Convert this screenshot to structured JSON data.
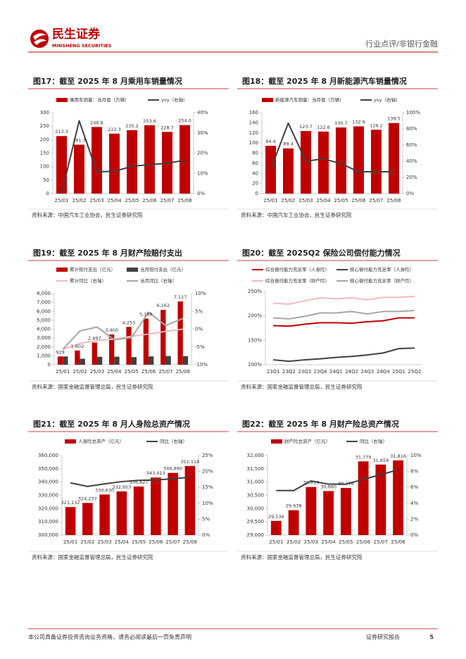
{
  "header": {
    "logo_name": "民生证券",
    "logo_en": "MINSHENG SECURITIES",
    "section": "行业点评/非银行金融"
  },
  "footer": {
    "disclaimer": "本公司具备证券投资咨询业务资格，请务必阅读最后一页免责声明",
    "report": "证券研究报告",
    "page": "5"
  },
  "chart_data": [
    {
      "type": "bar",
      "title": "图17：截至 2025 年 8 月乘用车销量情况",
      "source": "资料来源：中国汽车工业协会，民生证券研究院",
      "categories": [
        "25/01",
        "25/02",
        "25/03",
        "25/04",
        "25/05",
        "25/06",
        "25/07",
        "25/08"
      ],
      "ylim": [
        0,
        300
      ],
      "yticks": [
        0,
        50,
        100,
        150,
        200,
        250,
        300
      ],
      "y2lim": [
        0,
        40
      ],
      "y2ticks": [
        {
          "value": 0,
          "label": "0%"
        },
        {
          "value": 10,
          "label": "10%"
        },
        {
          "value": 20,
          "label": "20%"
        },
        {
          "value": 30,
          "label": "30%"
        },
        {
          "value": 40,
          "label": "40%"
        }
      ],
      "series": [
        {
          "name": "乘用车销量：当月值（万辆）",
          "type": "bar",
          "color": "#c00000",
          "values": [
            213.3,
            181.3,
            246.8,
            222.3,
            235.2,
            253.6,
            228.7,
            254.0
          ],
          "value_labels": [
            "213.3",
            "181.3",
            "246.8",
            "222.3",
            "235.2",
            "253.6",
            "228.7",
            "254.0"
          ]
        },
        {
          "name": "yoy（右轴）",
          "type": "line",
          "axis": "y2",
          "color": "#404040",
          "values": [
            0,
            36,
            10.8,
            11,
            13.5,
            14.3,
            15,
            16.5
          ]
        }
      ]
    },
    {
      "type": "bar",
      "title": "图18：截至 2025 年 8 月新能源汽车销量情况",
      "source": "资料来源：中国汽车工业协会，民生证券研究院",
      "categories": [
        "25/01",
        "25/02",
        "25/03",
        "25/04",
        "25/05",
        "25/06",
        "25/07",
        "25/08"
      ],
      "ylim": [
        0,
        160
      ],
      "yticks": [
        0,
        20,
        40,
        60,
        80,
        100,
        120,
        140,
        160
      ],
      "y2lim": [
        0,
        100
      ],
      "y2ticks": [
        {
          "value": 0,
          "label": "0%"
        },
        {
          "value": 20,
          "label": "20%"
        },
        {
          "value": 40,
          "label": "40%"
        },
        {
          "value": 60,
          "label": "60%"
        },
        {
          "value": 80,
          "label": "80%"
        },
        {
          "value": 100,
          "label": "100%"
        }
      ],
      "series": [
        {
          "name": "新能源汽车销量：当月值（万辆）",
          "type": "bar",
          "color": "#c00000",
          "values": [
            94.4,
            89.4,
            123.7,
            122.6,
            130.7,
            132.9,
            126.2,
            139.5
          ],
          "value_labels": [
            "94.4",
            "89.4",
            "123.7",
            "122.6",
            "130.7",
            "132.9",
            "126.2",
            "139.5"
          ]
        },
        {
          "name": "yoy（右轴）",
          "type": "line",
          "axis": "y2",
          "color": "#404040",
          "values": [
            30,
            87,
            40,
            43,
            37,
            27,
            27,
            27
          ]
        }
      ]
    },
    {
      "type": "bar",
      "title": "图19：截至 2025 年 8 月财产险赔付支出",
      "source": "资料来源：国家金融监督管理总局，民生证券研究院",
      "categories": [
        "25/01",
        "25/02",
        "25/03",
        "25/04",
        "25/05",
        "25/06",
        "25/07",
        "25/08"
      ],
      "ylim": [
        0,
        8000
      ],
      "yticks": [
        0,
        {
          "value": 1000,
          "label": "1,000"
        },
        {
          "value": 2000,
          "label": "2,000"
        },
        {
          "value": 3000,
          "label": "3,000"
        },
        {
          "value": 4000,
          "label": "4,000"
        },
        {
          "value": 5000,
          "label": "5,000"
        },
        {
          "value": 6000,
          "label": "6,000"
        },
        {
          "value": 7000,
          "label": "7,000"
        },
        {
          "value": 8000,
          "label": "8,000"
        }
      ],
      "y2lim": [
        -10,
        10
      ],
      "y2ticks": [
        {
          "value": -10,
          "label": "-10%"
        },
        {
          "value": -5,
          "label": "-5%"
        },
        {
          "value": 0,
          "label": "0%"
        },
        {
          "value": 5,
          "label": "5%"
        },
        {
          "value": 10,
          "label": "10%"
        }
      ],
      "series": [
        {
          "name": "累计赔付支出（亿元）",
          "type": "bar",
          "color": "#c00000",
          "values": [
            929,
            1602,
            2497,
            3400,
            4255,
            5188,
            6162,
            7117
          ],
          "value_labels": [
            "929",
            "1,602",
            "2,497",
            "3,400",
            "4,255",
            "5,188",
            "6,162",
            "7,117"
          ]
        },
        {
          "name": "当月赔付支出（亿元）",
          "type": "bar",
          "color": "#404040",
          "values": [
            929,
            673,
            895,
            903,
            855,
            933,
            974,
            955
          ]
        },
        {
          "name": "累计同比（右轴）",
          "type": "line",
          "axis": "y2",
          "color": "#f4b8bc",
          "values": [
            -5.7,
            -4,
            -3.2,
            -2.8,
            -2,
            -1.4,
            -0.6,
            0
          ]
        },
        {
          "name": "当月同比（右轴）",
          "type": "line",
          "axis": "y2",
          "color": "#a6a6a6",
          "values": [
            -5.7,
            -0.5,
            0.6,
            -3,
            -2.4,
            4.8,
            1,
            3
          ]
        }
      ]
    },
    {
      "type": "line",
      "title": "图20：截至 2025Q2 保险公司偿付能力情况",
      "source": "资料来源：国家金融监督管理总局，民生证券研究院",
      "categories": [
        "23Q1",
        "23Q2",
        "23Q3",
        "23Q4",
        "24Q1",
        "24Q2",
        "24Q3",
        "24Q4",
        "25Q1",
        "25Q2"
      ],
      "ylim": [
        100,
        250
      ],
      "yticks": [
        {
          "value": 100,
          "label": "100%"
        },
        {
          "value": 150,
          "label": "150%"
        },
        {
          "value": 200,
          "label": "200%"
        },
        {
          "value": 250,
          "label": "250%"
        }
      ],
      "series": [
        {
          "name": "综合偿付能力充足率（人身险）",
          "type": "line",
          "color": "#c00000",
          "values": [
            180,
            179,
            183,
            186,
            186,
            185,
            188,
            190,
            196,
            196
          ]
        },
        {
          "name": "核心偿付能力充足率（人身险）",
          "type": "line",
          "color": "#404040",
          "values": [
            110,
            107,
            110,
            112,
            115,
            117,
            120,
            124,
            133,
            134
          ]
        },
        {
          "name": "综合偿付能力充足率（财产险）",
          "type": "line",
          "color": "#f4b8bc",
          "values": [
            226,
            224,
            231,
            237,
            235,
            237,
            233,
            238,
            238,
            240
          ]
        },
        {
          "name": "核心偿付能力充足率（财产险）",
          "type": "line",
          "color": "#a6a6a6",
          "values": [
            196,
            194,
            199,
            206,
            206,
            209,
            204,
            209,
            209,
            211
          ]
        }
      ]
    },
    {
      "type": "bar",
      "title": "图21：截至 2025 年 8 月人身险总资产情况",
      "source": "资料来源：国家金融监督管理总局，民生证券研究院",
      "categories": [
        "25/01",
        "25/02",
        "25/03",
        "25/04",
        "25/05",
        "25/06",
        "25/07",
        "25/08"
      ],
      "ylim": [
        300000,
        360000
      ],
      "yticks": [
        {
          "value": 300000,
          "label": "300,000"
        },
        {
          "value": 310000,
          "label": "310,000"
        },
        {
          "value": 320000,
          "label": "320,000"
        },
        {
          "value": 330000,
          "label": "330,000"
        },
        {
          "value": 340000,
          "label": "340,000"
        },
        {
          "value": 350000,
          "label": "350,000"
        },
        {
          "value": 360000,
          "label": "360,000"
        }
      ],
      "y2lim": [
        0,
        25
      ],
      "y2ticks": [
        {
          "value": 0,
          "label": "0%"
        },
        {
          "value": 5,
          "label": "5%"
        },
        {
          "value": 10,
          "label": "10%"
        },
        {
          "value": 15,
          "label": "15%"
        },
        {
          "value": 20,
          "label": "20%"
        },
        {
          "value": 25,
          "label": "25%"
        }
      ],
      "series": [
        {
          "name": "人身险总资产（亿元）",
          "type": "bar",
          "color": "#c00000",
          "values": [
            321132,
            324237,
            330630,
            332953,
            336627,
            343413,
            346890,
            352118
          ],
          "value_labels": [
            "321,132",
            "324,237",
            "330,630",
            "332,953",
            "336,627",
            "343,413",
            "346,890",
            "352,118"
          ]
        },
        {
          "name": "同比（右轴）",
          "type": "line",
          "axis": "y2",
          "color": "#404040",
          "values": [
            16.4,
            15.3,
            16.1,
            16.8,
            17.2,
            17.3,
            17.7,
            18.2
          ]
        }
      ]
    },
    {
      "type": "bar",
      "title": "图22：截至 2025 年 8 月财产险总资产情况",
      "source": "资料来源：国家金融监督管理总局，民生证券研究院",
      "categories": [
        "25/01",
        "25/02",
        "25/03",
        "25/04",
        "25/05",
        "25/06",
        "25/07",
        "25/08"
      ],
      "ylim": [
        29000,
        32000
      ],
      "yticks": [
        {
          "value": 29000,
          "label": "29,000"
        },
        {
          "value": 29500,
          "label": "29,500"
        },
        {
          "value": 30000,
          "label": "30,000"
        },
        {
          "value": 30500,
          "label": "30,500"
        },
        {
          "value": 31000,
          "label": "31,000"
        },
        {
          "value": 31500,
          "label": "31,500"
        },
        {
          "value": 32000,
          "label": "32,000"
        }
      ],
      "y2lim": [
        0,
        10
      ],
      "y2ticks": [
        {
          "value": 0,
          "label": "0%"
        },
        {
          "value": 2,
          "label": "2%"
        },
        {
          "value": 4,
          "label": "4%"
        },
        {
          "value": 6,
          "label": "6%"
        },
        {
          "value": 8,
          "label": "8%"
        },
        {
          "value": 10,
          "label": "10%"
        }
      ],
      "series": [
        {
          "name": "财产险总资产（亿元）",
          "type": "bar",
          "color": "#c00000",
          "values": [
            29536,
            29938,
            30813,
            30660,
            30776,
            31779,
            31659,
            31816
          ],
          "value_labels": [
            "29,536",
            "29,938",
            "30,813",
            "30,660",
            "30,776",
            "31,779",
            "31,659",
            "31,816"
          ]
        },
        {
          "name": "同比（右轴）",
          "type": "line",
          "axis": "y2",
          "color": "#404040",
          "values": [
            5.6,
            5.6,
            6.8,
            6.4,
            6.4,
            7,
            7.6,
            8.2
          ]
        }
      ]
    }
  ]
}
